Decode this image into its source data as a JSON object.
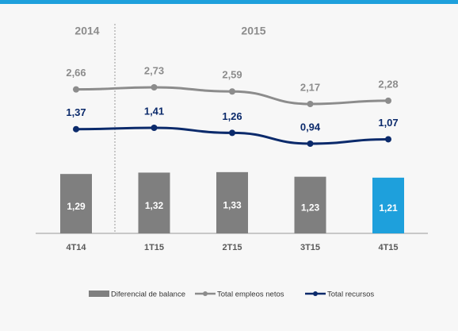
{
  "chart_data": {
    "type": "combo",
    "categories": [
      "4T14",
      "1T15",
      "2T15",
      "3T15",
      "4T15"
    ],
    "annotations": [
      "2014",
      "2015"
    ],
    "series": [
      {
        "name": "Diferencial de balance",
        "type": "bar",
        "color": "#7f7f7f",
        "colors": [
          "#7f7f7f",
          "#7f7f7f",
          "#7f7f7f",
          "#7f7f7f",
          "#1ea0dc"
        ],
        "values": [
          1.29,
          1.32,
          1.33,
          1.23,
          1.21
        ],
        "value_labels": [
          "1,29",
          "1,32",
          "1,33",
          "1,23",
          "1,21"
        ]
      },
      {
        "name": "Total empleos netos",
        "type": "line",
        "color": "#8c8c8c",
        "values": [
          2.66,
          2.73,
          2.59,
          2.17,
          2.28
        ],
        "value_labels": [
          "2,66",
          "2,73",
          "2,59",
          "2,17",
          "2,28"
        ]
      },
      {
        "name": "Total recursos",
        "type": "line",
        "color": "#0b2a6b",
        "values": [
          1.37,
          1.41,
          1.26,
          0.94,
          1.07
        ],
        "value_labels": [
          "1,37",
          "1,41",
          "1,26",
          "0,94",
          "1,07"
        ]
      }
    ]
  }
}
